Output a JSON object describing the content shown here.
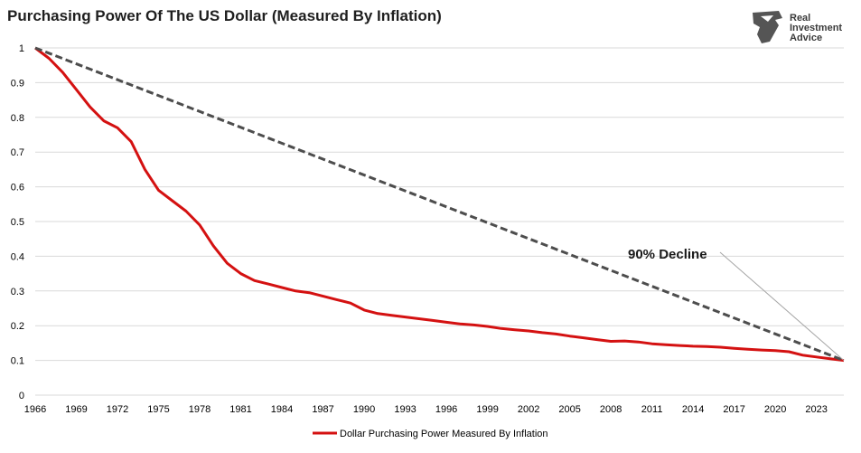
{
  "logo": {
    "lines": [
      "Real",
      "Investment",
      "Advice"
    ]
  },
  "colors": {
    "series": "#d41111",
    "trend": "#4d4d4d",
    "grid": "#d9d9d9",
    "logo": "#555555"
  },
  "chart_data": {
    "type": "line",
    "title": "Purchasing Power Of The US Dollar (Measured By Inflation)",
    "xlabel": "",
    "ylabel": "",
    "xlim": [
      1966,
      2025
    ],
    "ylim": [
      0,
      1
    ],
    "grid": true,
    "legend_position": "bottom",
    "x_ticks": [
      "1966",
      "1969",
      "1972",
      "1975",
      "1978",
      "1981",
      "1984",
      "1987",
      "1990",
      "1993",
      "1996",
      "1999",
      "2002",
      "2005",
      "2008",
      "2011",
      "2014",
      "2017",
      "2020",
      "2023"
    ],
    "y_ticks": [
      "0",
      "0.1",
      "0.2",
      "0.3",
      "0.4",
      "0.5",
      "0.6",
      "0.7",
      "0.8",
      "0.9",
      "1"
    ],
    "series": [
      {
        "name": "Dollar Purchasing Power Measured By Inflation",
        "style": "solid",
        "x": [
          1966,
          1967,
          1968,
          1969,
          1970,
          1971,
          1972,
          1973,
          1974,
          1975,
          1976,
          1977,
          1978,
          1979,
          1980,
          1981,
          1982,
          1983,
          1984,
          1985,
          1986,
          1987,
          1988,
          1989,
          1990,
          1991,
          1992,
          1993,
          1994,
          1995,
          1996,
          1997,
          1998,
          1999,
          2000,
          2001,
          2002,
          2003,
          2004,
          2005,
          2006,
          2007,
          2008,
          2009,
          2010,
          2011,
          2012,
          2013,
          2014,
          2015,
          2016,
          2017,
          2018,
          2019,
          2020,
          2021,
          2022,
          2023,
          2024,
          2025
        ],
        "values": [
          1.0,
          0.97,
          0.93,
          0.88,
          0.83,
          0.79,
          0.77,
          0.73,
          0.65,
          0.59,
          0.56,
          0.53,
          0.49,
          0.43,
          0.38,
          0.35,
          0.33,
          0.32,
          0.31,
          0.3,
          0.295,
          0.285,
          0.275,
          0.265,
          0.245,
          0.235,
          0.23,
          0.225,
          0.22,
          0.215,
          0.21,
          0.205,
          0.202,
          0.198,
          0.192,
          0.188,
          0.185,
          0.18,
          0.176,
          0.17,
          0.165,
          0.16,
          0.155,
          0.156,
          0.153,
          0.148,
          0.145,
          0.143,
          0.141,
          0.14,
          0.138,
          0.135,
          0.132,
          0.13,
          0.128,
          0.125,
          0.115,
          0.11,
          0.105,
          0.1
        ]
      },
      {
        "style": "dashed",
        "x": [
          1966,
          2025
        ],
        "values": [
          1.0,
          0.1
        ]
      }
    ],
    "annotations": [
      {
        "text": "90% Decline",
        "x": 2025,
        "y": 0.1
      }
    ]
  }
}
